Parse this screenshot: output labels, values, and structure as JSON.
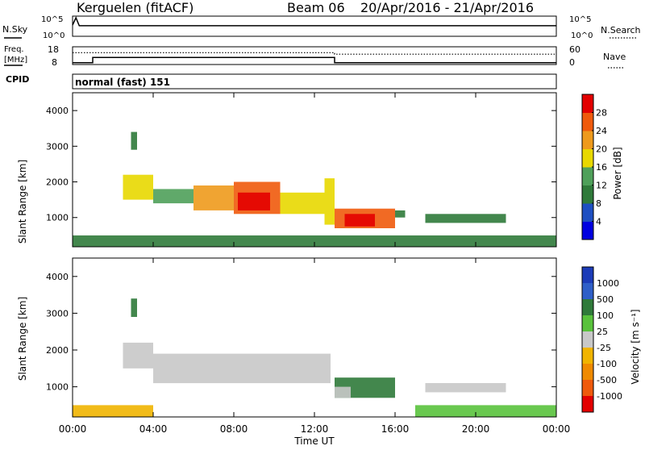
{
  "header": {
    "radar": "Kerguelen (fitACF)",
    "beam": "Beam 06",
    "date_range": "20/Apr/2016 - 21/Apr/2016"
  },
  "colors": {
    "power_scale": [
      "#0000e0",
      "#1e4fc2",
      "#2f7a3a",
      "#4fa05a",
      "#e8d800",
      "#ee9a1c",
      "#ef5a0c",
      "#e30000"
    ],
    "velocity_scale": [
      "#1c3cb8",
      "#2f5fc8",
      "#2f7a3a",
      "#59c23c",
      "#c8c8c8",
      "#f0b400",
      "#ef8a00",
      "#ef5a0c",
      "#e30000"
    ],
    "line": "#000000"
  },
  "chart_data": [
    {
      "type": "line",
      "id": "nsky-panel",
      "ylabel": "N.Sky",
      "right_label": "N.Search",
      "yticks": [
        "10^5",
        "10^0"
      ],
      "right_yticks": [
        "10^5",
        "10^0"
      ],
      "x": [
        "00:00",
        "00:10",
        "00:20",
        "04:00",
        "08:00",
        "12:00",
        "16:00",
        "20:00",
        "24:00"
      ],
      "series": [
        {
          "values": [
            10000,
            10000000,
            5000,
            5000,
            5000,
            5000,
            5000,
            5000,
            5000
          ]
        }
      ]
    },
    {
      "type": "line",
      "id": "freq-panel",
      "ylabel": "Freq. [MHz]",
      "right_label": "Nave",
      "yticks": [
        18,
        8
      ],
      "right_yticks": [
        60,
        0
      ],
      "ylim": [
        8,
        18
      ],
      "right_ylim": [
        0,
        60
      ],
      "freq": [
        {
          "x": "00:00",
          "y": 9
        },
        {
          "x": "01:00",
          "y": 9
        },
        {
          "x": "01:00",
          "y": 12
        },
        {
          "x": "13:00",
          "y": 12
        },
        {
          "x": "13:00",
          "y": 9
        },
        {
          "x": "24:00",
          "y": 9
        }
      ],
      "nave": [
        {
          "x": "00:00",
          "y": 40
        },
        {
          "x": "13:00",
          "y": 40
        },
        {
          "x": "13:00",
          "y": 35
        },
        {
          "x": "24:00",
          "y": 35
        }
      ]
    },
    {
      "type": "scatter",
      "id": "cpid-panel",
      "label": "CPID",
      "text": "normal (fast) 151"
    },
    {
      "type": "heatmap",
      "id": "power-panel",
      "ylabel": "Slant Range [km]",
      "colorbar_label": "Power [dB]",
      "yticks": [
        1000,
        2000,
        3000,
        4000
      ],
      "ylim": [
        180,
        4500
      ],
      "colorbar_ticks": [
        4,
        8,
        12,
        16,
        20,
        24,
        28
      ],
      "colorbar_range": [
        0,
        32
      ],
      "regions": [
        {
          "t": [
            2.9,
            3.2
          ],
          "r": [
            2900,
            3400
          ],
          "v": 8
        },
        {
          "t": [
            2.5,
            4.0
          ],
          "r": [
            1500,
            2200
          ],
          "v": 16
        },
        {
          "t": [
            4.0,
            6.0
          ],
          "r": [
            1400,
            1800
          ],
          "v": 12
        },
        {
          "t": [
            6.0,
            8.0
          ],
          "r": [
            1200,
            1900
          ],
          "v": 20
        },
        {
          "t": [
            8.0,
            10.3
          ],
          "r": [
            1100,
            2000
          ],
          "v": 24
        },
        {
          "t": [
            8.2,
            9.8
          ],
          "r": [
            1200,
            1700
          ],
          "v": 28
        },
        {
          "t": [
            10.3,
            12.5
          ],
          "r": [
            1100,
            1700
          ],
          "v": 16
        },
        {
          "t": [
            12.5,
            13.0
          ],
          "r": [
            800,
            2100
          ],
          "v": 16
        },
        {
          "t": [
            13.0,
            16.0
          ],
          "r": [
            700,
            1250
          ],
          "v": 24
        },
        {
          "t": [
            13.5,
            15.0
          ],
          "r": [
            750,
            1100
          ],
          "v": 28
        },
        {
          "t": [
            16.0,
            16.5
          ],
          "r": [
            1000,
            1200
          ],
          "v": 8
        },
        {
          "t": [
            17.5,
            21.5
          ],
          "r": [
            850,
            1100
          ],
          "v": 8
        },
        {
          "t": [
            0.0,
            24.0
          ],
          "r": [
            180,
            500
          ],
          "v": 8
        }
      ]
    },
    {
      "type": "heatmap",
      "id": "velocity-panel",
      "ylabel": "Slant Range [km]",
      "colorbar_label": "Velocity [m s⁻¹]",
      "yticks": [
        1000,
        2000,
        3000,
        4000
      ],
      "ylim": [
        180,
        4500
      ],
      "colorbar_ticks": [
        "1000",
        "500",
        "100",
        "25",
        "-25",
        "-100",
        "-500",
        "-1000"
      ],
      "xlabel": "Time UT",
      "x_ticks": [
        "00:00",
        "04:00",
        "08:00",
        "12:00",
        "16:00",
        "20:00",
        "00:00"
      ],
      "regions": [
        {
          "t": [
            2.9,
            3.2
          ],
          "r": [
            2900,
            3400
          ],
          "v": 100
        },
        {
          "t": [
            2.5,
            4.0
          ],
          "r": [
            1500,
            2200
          ],
          "v": 0
        },
        {
          "t": [
            4.0,
            12.8
          ],
          "r": [
            1100,
            1900
          ],
          "v": 0
        },
        {
          "t": [
            13.0,
            16.0
          ],
          "r": [
            700,
            1250
          ],
          "v": 100
        },
        {
          "t": [
            13.0,
            13.8
          ],
          "r": [
            700,
            1000
          ],
          "v": 0
        },
        {
          "t": [
            17.5,
            21.5
          ],
          "r": [
            850,
            1100
          ],
          "v": -25
        },
        {
          "t": [
            0.0,
            4.0
          ],
          "r": [
            180,
            500
          ],
          "v": -100
        },
        {
          "t": [
            17.0,
            24.0
          ],
          "r": [
            180,
            500
          ],
          "v": 25
        }
      ]
    }
  ]
}
